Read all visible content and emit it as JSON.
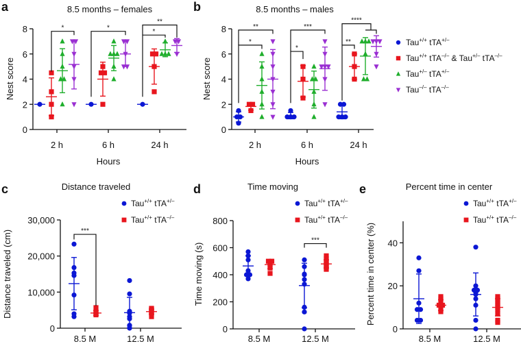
{
  "colors": {
    "blue": "#0b17d4",
    "red": "#e8161e",
    "green": "#1fae2c",
    "purple": "#9a2fd2",
    "axis": "#111111"
  },
  "legend_main": [
    {
      "marker": "circle",
      "color": "blue",
      "parts": [
        {
          "t": "Tau"
        },
        {
          "sup": "+/+"
        },
        {
          "t": " tTA"
        },
        {
          "sup": "+/–"
        }
      ]
    },
    {
      "marker": "square",
      "color": "red",
      "parts": [
        {
          "t": "Tau"
        },
        {
          "sup": "+/+"
        },
        {
          "t": " tTA"
        },
        {
          "sup": "–/–"
        },
        {
          "t": " & Tau"
        },
        {
          "sup": "+/–"
        },
        {
          "t": " tTA"
        },
        {
          "sup": "–/–"
        }
      ]
    },
    {
      "marker": "triangle-up",
      "color": "green",
      "parts": [
        {
          "t": "Tau"
        },
        {
          "sup": "+/–"
        },
        {
          "t": " tTA"
        },
        {
          "sup": "+/–"
        }
      ]
    },
    {
      "marker": "triangle-down",
      "color": "purple",
      "parts": [
        {
          "t": "Tau"
        },
        {
          "sup": "–/–"
        },
        {
          "t": " tTA"
        },
        {
          "sup": "–/–"
        }
      ]
    }
  ],
  "legend_small": [
    {
      "marker": "circle",
      "color": "blue",
      "parts": [
        {
          "t": "Tau"
        },
        {
          "sup": "+/+"
        },
        {
          "t": " tTA"
        },
        {
          "sup": "+/–"
        }
      ]
    },
    {
      "marker": "square",
      "color": "red",
      "parts": [
        {
          "t": "Tau"
        },
        {
          "sup": "+/+"
        },
        {
          "t": " tTA"
        },
        {
          "sup": "–/–"
        }
      ]
    }
  ],
  "chart_data": [
    {
      "id": "a",
      "letter": "a",
      "type": "scatter",
      "title": "8.5 months – females",
      "xlabel": "Hours",
      "ylabel": "Nest score",
      "ylim": [
        0,
        8
      ],
      "yticks": [
        0,
        2,
        4,
        6,
        8
      ],
      "ytick_labels": [
        "0",
        "2",
        "4",
        "6",
        "8"
      ],
      "categories": [
        "2 h",
        "6 h",
        "24 h"
      ],
      "groups": [
        "blue",
        "red",
        "green",
        "purple"
      ],
      "markers": [
        "circle",
        "square",
        "triangle-up",
        "triangle-down"
      ],
      "data": [
        [
          {
            "points": [
              2
            ],
            "mean": 2,
            "sd": 0
          },
          {
            "points": [
              1,
              2,
              3,
              4.5
            ],
            "mean": 2.6,
            "sd": 1.5
          },
          {
            "points": [
              2,
              4,
              4,
              5,
              6,
              7
            ],
            "mean": 4.67,
            "sd": 1.75
          },
          {
            "points": [
              2,
              4,
              5,
              6,
              7,
              7
            ],
            "mean": 5.17,
            "sd": 1.95
          }
        ],
        [
          {
            "points": [
              2
            ],
            "mean": 2,
            "sd": 0
          },
          {
            "points": [
              2,
              4.5,
              4.5,
              5
            ],
            "mean": 4,
            "sd": 1.35
          },
          {
            "points": [
              4,
              5,
              6,
              6,
              6,
              7
            ],
            "mean": 5.67,
            "sd": 1.0
          },
          {
            "points": [
              5,
              5,
              6,
              7,
              7
            ],
            "mean": 6,
            "sd": 1.0
          }
        ],
        [
          {
            "points": [
              2
            ],
            "mean": 2,
            "sd": 0
          },
          {
            "points": [
              3,
              5,
              6,
              6
            ],
            "mean": 5,
            "sd": 1.4
          },
          {
            "points": [
              6,
              6,
              6,
              7
            ],
            "mean": 6.33,
            "sd": 0.55
          },
          {
            "points": [
              6,
              7,
              7
            ],
            "mean": 6.67,
            "sd": 0.55
          }
        ]
      ],
      "significance": [
        {
          "from": [
            0,
            1
          ],
          "to": [
            0,
            3
          ],
          "y": 7.8,
          "y_left": 4.6,
          "y_right": 7.5,
          "label": "*"
        },
        {
          "from": [
            1,
            0
          ],
          "to": [
            1,
            3
          ],
          "y": 7.8,
          "y_left": 2.6,
          "y_right": 7.5,
          "label": "*"
        },
        {
          "from": [
            2,
            0
          ],
          "to": [
            2,
            2
          ],
          "y": 7.5,
          "y_left": 2.6,
          "y_right": 7.3,
          "label": "*"
        },
        {
          "from": [
            2,
            0
          ],
          "to": [
            2,
            3
          ],
          "y": 8.3,
          "y_left": 7.5,
          "y_right": 7.3,
          "label": "**"
        }
      ]
    },
    {
      "id": "b",
      "letter": "b",
      "type": "scatter",
      "title": "8.5 months – males",
      "xlabel": "Hours",
      "ylabel": "Nest score",
      "ylim": [
        0,
        8
      ],
      "yticks": [
        0,
        2,
        4,
        6,
        8
      ],
      "ytick_labels": [
        "0",
        "2",
        "4",
        "6",
        "8"
      ],
      "categories": [
        "2 h",
        "6 h",
        "24 h"
      ],
      "groups": [
        "blue",
        "red",
        "green",
        "purple"
      ],
      "markers": [
        "circle",
        "square",
        "triangle-up",
        "triangle-down"
      ],
      "data": [
        [
          {
            "points": [
              0.5,
              1,
              1,
              1.5
            ],
            "mean": 1,
            "sd": 0.4
          },
          {
            "points": [
              1.5,
              2,
              2
            ],
            "mean": 1.83,
            "sd": 0.3
          },
          {
            "points": [
              1,
              2,
              3,
              4,
              5,
              6
            ],
            "mean": 3.5,
            "sd": 1.87
          },
          {
            "points": [
              1,
              2,
              3,
              4,
              5,
              6,
              7
            ],
            "mean": 4,
            "sd": 2.35
          }
        ],
        [
          {
            "points": [
              1,
              1,
              1,
              1.5
            ],
            "mean": 1.1,
            "sd": 0.25
          },
          {
            "points": [
              2.5,
              4,
              5
            ],
            "mean": 3.83,
            "sd": 1.25
          },
          {
            "points": [
              1,
              2,
              3,
              4,
              4,
              5
            ],
            "mean": 3.17,
            "sd": 1.47
          },
          {
            "points": [
              2,
              4,
              5,
              5,
              5,
              6,
              7
            ],
            "mean": 4.83,
            "sd": 1.72
          }
        ],
        [
          {
            "points": [
              1,
              1,
              1,
              2,
              2
            ],
            "mean": 1.4,
            "sd": 0.55
          },
          {
            "points": [
              4,
              5,
              6
            ],
            "mean": 5,
            "sd": 1
          },
          {
            "points": [
              4,
              4,
              6,
              7,
              7,
              7
            ],
            "mean": 5.83,
            "sd": 1.47
          },
          {
            "points": [
              5,
              6,
              7,
              7,
              7
            ],
            "mean": 6.6,
            "sd": 0.85
          }
        ]
      ],
      "significance": [
        {
          "from": [
            0,
            0
          ],
          "to": [
            0,
            2
          ],
          "y": 6.7,
          "y_left": 2.1,
          "y_right": 6.4,
          "label": "*"
        },
        {
          "from": [
            0,
            0
          ],
          "to": [
            0,
            3
          ],
          "y": 7.9,
          "y_left": 6.7,
          "y_right": 7.6,
          "label": "**"
        },
        {
          "from": [
            1,
            0
          ],
          "to": [
            1,
            1
          ],
          "y": 6.2,
          "y_left": 2.1,
          "y_right": 5.6,
          "label": "*"
        },
        {
          "from": [
            1,
            0
          ],
          "to": [
            1,
            3
          ],
          "y": 7.9,
          "y_left": 6.2,
          "y_right": 7.6,
          "label": "***"
        },
        {
          "from": [
            2,
            0
          ],
          "to": [
            2,
            1
          ],
          "y": 6.7,
          "y_left": 2.3,
          "y_right": 6.4,
          "label": "**"
        },
        {
          "from": [
            2,
            0
          ],
          "to": [
            2,
            2.5
          ],
          "y": 8.4,
          "y_left": 6.7,
          "y_right": 7.9,
          "label": "****"
        },
        {
          "from": [
            2,
            2
          ],
          "to": [
            2,
            3
          ],
          "y": 7.9,
          "y_left": 7.9,
          "y_right": 7.6,
          "label": ""
        }
      ]
    },
    {
      "id": "c",
      "letter": "c",
      "type": "scatter",
      "title": "Distance traveled",
      "xlabel": "",
      "ylabel": "Distance traveled (cm)",
      "ylim": [
        0,
        30000
      ],
      "yticks": [
        0,
        10000,
        20000,
        30000
      ],
      "ytick_labels": [
        "0",
        "10,000",
        "20,000",
        "30,000"
      ],
      "categories": [
        "8.5 M",
        "12.5 M"
      ],
      "groups": [
        "blue",
        "red"
      ],
      "markers": [
        "circle",
        "square"
      ],
      "data": [
        [
          {
            "points": [
              3200,
              4000,
              9200,
              14600,
              15300,
              16800,
              23300
            ],
            "mean": 12350,
            "sd": 7250
          },
          {
            "points": [
              3700,
              4000,
              4200,
              4500,
              5700
            ],
            "mean": 4200,
            "sd": 700
          }
        ],
        [
          {
            "points": [
              0,
              700,
              800,
              2600,
              3200,
              4200,
              4400,
              4700,
              9500,
              13200
            ],
            "mean": 4300,
            "sd": 4250
          },
          {
            "points": [
              3200,
              4000,
              4300,
              4600,
              4800,
              5100,
              5300,
              5500
            ],
            "mean": 4600,
            "sd": 700
          }
        ]
      ],
      "significance": [
        {
          "from": [
            0,
            0
          ],
          "to": [
            0,
            1
          ],
          "y": 26000,
          "y_left": 24600,
          "y_right": 6200,
          "label": "***"
        }
      ]
    },
    {
      "id": "d",
      "letter": "d",
      "type": "scatter",
      "title": "Time moving",
      "xlabel": "",
      "ylabel": "Time moving (s)",
      "ylim": [
        0,
        800
      ],
      "yticks": [
        0,
        200,
        400,
        600,
        800
      ],
      "ytick_labels": [
        "0",
        "200",
        "400",
        "600",
        "800"
      ],
      "categories": [
        "8.5 M",
        "12.5 M"
      ],
      "groups": [
        "blue",
        "red"
      ],
      "markers": [
        "circle",
        "square"
      ],
      "data": [
        [
          {
            "points": [
              370,
              400,
              400,
              430,
              510,
              540,
              570
            ],
            "mean": 465,
            "sd": 75
          },
          {
            "points": [
              410,
              450,
              470,
              480,
              490,
              500,
              500
            ],
            "mean": 475,
            "sd": 30
          }
        ],
        [
          {
            "points": [
              0,
              125,
              160,
              330,
              365,
              400,
              405,
              460,
              510
            ],
            "mean": 320,
            "sd": 165
          },
          {
            "points": [
              440,
              450,
              460,
              470,
              480,
              490,
              500,
              520,
              540
            ],
            "mean": 480,
            "sd": 30
          }
        ]
      ],
      "significance": [
        {
          "from": [
            1,
            0
          ],
          "to": [
            1,
            1
          ],
          "y": 630,
          "y_left": 600,
          "y_right": 600,
          "label": "***"
        }
      ]
    },
    {
      "id": "e",
      "letter": "e",
      "type": "scatter",
      "title": "Percent time in center",
      "xlabel": "",
      "ylabel": "Percent time in center (%)",
      "ylim": [
        0,
        50
      ],
      "yticks": [
        0,
        20,
        40
      ],
      "ytick_labels": [
        "0",
        "20",
        "40"
      ],
      "categories": [
        "8.5 M",
        "12.5 M"
      ],
      "groups": [
        "blue",
        "red"
      ],
      "markers": [
        "circle",
        "square"
      ],
      "data": [
        [
          {
            "points": [
              4,
              4,
              9,
              9,
              12,
              27,
              33
            ],
            "mean": 14,
            "sd": 11.5
          },
          {
            "points": [
              8,
              9,
              11,
              11,
              13,
              14,
              15
            ],
            "mean": 11,
            "sd": 2.5
          }
        ],
        [
          {
            "points": [
              0,
              4,
              11,
              14,
              16,
              17,
              18,
              18,
              20,
              38
            ],
            "mean": 16,
            "sd": 10
          },
          {
            "points": [
              3,
              4,
              7,
              9,
              10,
              11,
              12,
              13,
              14,
              15
            ],
            "mean": 10,
            "sd": 4
          }
        ]
      ],
      "significance": []
    }
  ]
}
